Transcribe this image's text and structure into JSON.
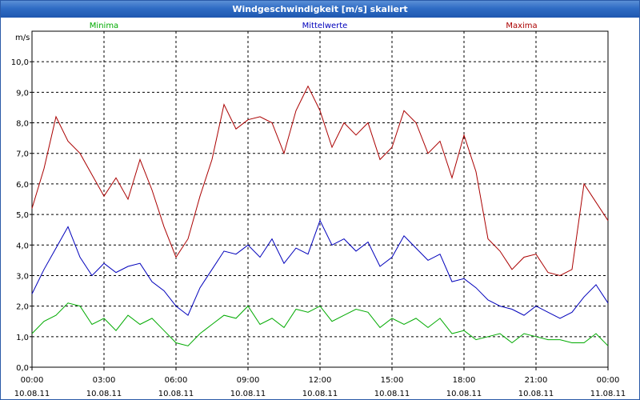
{
  "window": {
    "title": "Windgeschwindigkeit [m/s] skaliert"
  },
  "chart_data": {
    "type": "line",
    "title": "Windgeschwindigkeit [m/s] skaliert",
    "ylabel": "m/s",
    "xlabel": "",
    "ylim": [
      0,
      11
    ],
    "xlim": [
      0,
      24
    ],
    "grid": true,
    "y_ticks": [
      "0,0",
      "1,0",
      "2,0",
      "3,0",
      "4,0",
      "5,0",
      "6,0",
      "7,0",
      "8,0",
      "9,0",
      "10,0"
    ],
    "y_tick_values": [
      0,
      1,
      2,
      3,
      4,
      5,
      6,
      7,
      8,
      9,
      10
    ],
    "x_ticks": [
      {
        "time": "00:00",
        "date": "10.08.11"
      },
      {
        "time": "03:00",
        "date": "10.08.11"
      },
      {
        "time": "06:00",
        "date": "10.08.11"
      },
      {
        "time": "09:00",
        "date": "10.08.11"
      },
      {
        "time": "12:00",
        "date": "10.08.11"
      },
      {
        "time": "15:00",
        "date": "10.08.11"
      },
      {
        "time": "18:00",
        "date": "10.08.11"
      },
      {
        "time": "21:00",
        "date": "10.08.11"
      },
      {
        "time": "00:00",
        "date": "11.08.11"
      }
    ],
    "x_tick_values": [
      0,
      3,
      6,
      9,
      12,
      15,
      18,
      21,
      24
    ],
    "x_unit": "hours",
    "series": [
      {
        "name": "Minima",
        "color": "#00aa00",
        "x": [
          0,
          0.5,
          1,
          1.5,
          2,
          2.5,
          3,
          3.5,
          4,
          4.5,
          5,
          5.5,
          6,
          6.5,
          7,
          7.5,
          8,
          8.5,
          9,
          9.5,
          10,
          10.5,
          11,
          11.5,
          12,
          12.5,
          13,
          13.5,
          14,
          14.5,
          15,
          15.5,
          16,
          16.5,
          17,
          17.5,
          18,
          18.5,
          19,
          19.5,
          20,
          20.5,
          21,
          21.5,
          22,
          22.5,
          23,
          23.5,
          24
        ],
        "values": [
          1.1,
          1.5,
          1.7,
          2.1,
          2.0,
          1.4,
          1.6,
          1.2,
          1.7,
          1.4,
          1.6,
          1.2,
          0.8,
          0.7,
          1.1,
          1.4,
          1.7,
          1.6,
          2.0,
          1.4,
          1.6,
          1.3,
          1.9,
          1.8,
          2.0,
          1.5,
          1.7,
          1.9,
          1.8,
          1.3,
          1.6,
          1.4,
          1.6,
          1.3,
          1.6,
          1.1,
          1.2,
          0.9,
          1.0,
          1.1,
          0.8,
          1.1,
          1.0,
          0.9,
          0.9,
          0.8,
          0.8,
          1.1,
          0.7
        ]
      },
      {
        "name": "Mittelwerte",
        "color": "#0000bb",
        "x": [
          0,
          0.5,
          1,
          1.5,
          2,
          2.5,
          3,
          3.5,
          4,
          4.5,
          5,
          5.5,
          6,
          6.5,
          7,
          7.5,
          8,
          8.5,
          9,
          9.5,
          10,
          10.5,
          11,
          11.5,
          12,
          12.5,
          13,
          13.5,
          14,
          14.5,
          15,
          15.5,
          16,
          16.5,
          17,
          17.5,
          18,
          18.5,
          19,
          19.5,
          20,
          20.5,
          21,
          21.5,
          22,
          22.5,
          23,
          23.5,
          24
        ],
        "values": [
          2.4,
          3.2,
          3.9,
          4.6,
          3.6,
          3.0,
          3.4,
          3.1,
          3.3,
          3.4,
          2.8,
          2.5,
          2.0,
          1.7,
          2.6,
          3.2,
          3.8,
          3.7,
          4.0,
          3.6,
          4.2,
          3.4,
          3.9,
          3.7,
          4.8,
          4.0,
          4.2,
          3.8,
          4.1,
          3.3,
          3.6,
          4.3,
          3.9,
          3.5,
          3.7,
          2.8,
          2.9,
          2.6,
          2.2,
          2.0,
          1.9,
          1.7,
          2.0,
          1.8,
          1.6,
          1.8,
          2.3,
          2.7,
          2.1
        ]
      },
      {
        "name": "Maxima",
        "color": "#aa0000",
        "x": [
          0,
          0.5,
          1,
          1.5,
          2,
          2.5,
          3,
          3.5,
          4,
          4.5,
          5,
          5.5,
          6,
          6.5,
          7,
          7.5,
          8,
          8.5,
          9,
          9.5,
          10,
          10.5,
          11,
          11.5,
          12,
          12.5,
          13,
          13.5,
          14,
          14.5,
          15,
          15.5,
          16,
          16.5,
          17,
          17.5,
          18,
          18.5,
          19,
          19.5,
          20,
          20.5,
          21,
          21.5,
          22,
          22.5,
          23,
          23.5,
          24
        ],
        "values": [
          5.2,
          6.5,
          8.2,
          7.4,
          7.0,
          6.3,
          5.6,
          6.2,
          5.5,
          6.8,
          5.8,
          4.6,
          3.6,
          4.2,
          5.6,
          6.8,
          8.6,
          7.8,
          8.1,
          8.2,
          8.0,
          7.0,
          8.4,
          9.2,
          8.4,
          7.2,
          8.0,
          7.6,
          8.0,
          6.8,
          7.2,
          8.4,
          8.0,
          7.0,
          7.4,
          6.2,
          7.6,
          6.4,
          4.2,
          3.8,
          3.2,
          3.6,
          3.7,
          3.1,
          3.0,
          3.2,
          6.0,
          5.4,
          4.8
        ]
      }
    ],
    "legend": [
      {
        "label": "Minima",
        "color": "#00aa00"
      },
      {
        "label": "Mittelwerte",
        "color": "#0000bb"
      },
      {
        "label": "Maxima",
        "color": "#aa0000"
      }
    ]
  }
}
